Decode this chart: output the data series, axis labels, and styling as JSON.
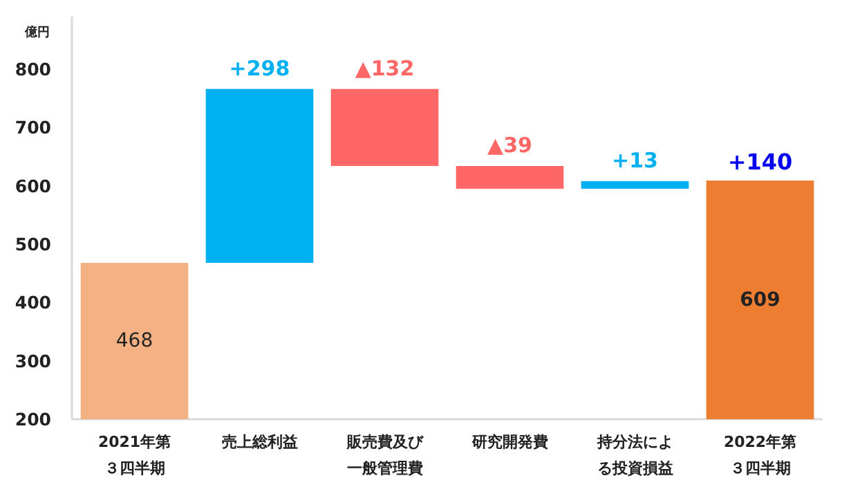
{
  "chart_data": {
    "type": "bar",
    "ylabel": "億円",
    "categories": [
      "2021年第３四半期",
      "売上総利益",
      "販売費及び一般管理費",
      "研究開発費",
      "持分法による投資損益",
      "2022年第３四半期"
    ],
    "values": [
      468,
      298,
      -132,
      -39,
      13,
      609
    ],
    "base": [
      null,
      468,
      766,
      634,
      595,
      null
    ],
    "colors": [
      "#f4b183",
      "#00b0f0",
      "#ff6666",
      "#ff6666",
      "#00b0f0",
      "#ed7d31"
    ],
    "value_labels": [
      "468",
      "+298",
      "▲132",
      "▲39",
      "+13",
      "609"
    ],
    "annotations": [
      {
        "text": "+140",
        "x": "2022年第３四半期",
        "y": 609
      }
    ],
    "ylim": [
      200,
      890
    ],
    "yticks": [
      200,
      300,
      400,
      500,
      600,
      700,
      800
    ],
    "grid": false
  }
}
